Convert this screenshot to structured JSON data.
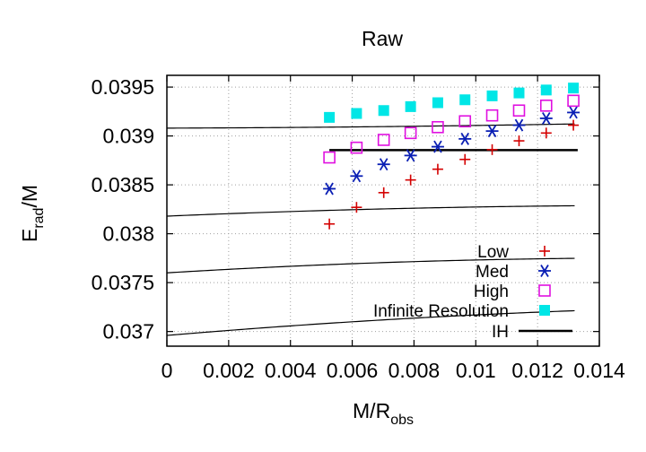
{
  "chart_data": {
    "type": "scatter",
    "title": "Raw",
    "xlabel": {
      "main": "M/R",
      "sub": "obs"
    },
    "ylabel": {
      "main": "E",
      "sub": "rad",
      "tail": "/M"
    },
    "xlim": [
      0,
      0.014
    ],
    "ylim": [
      0.03685,
      0.03962
    ],
    "xticks": [
      0,
      0.002,
      0.004,
      0.006,
      0.008,
      0.01,
      0.012,
      0.014
    ],
    "xtick_labels": [
      "0",
      "0.002",
      "0.004",
      "0.006",
      "0.008",
      "0.01",
      "0.012",
      "0.014"
    ],
    "yticks": [
      0.037,
      0.0375,
      0.038,
      0.0385,
      0.039,
      0.0395
    ],
    "ytick_labels": [
      "0.037",
      "0.0375",
      "0.038",
      "0.0385",
      "0.039",
      "0.0395"
    ],
    "grid": true,
    "legend_position": "bottom-right",
    "series": [
      {
        "name": "Low",
        "marker": "plus",
        "color": "#d40000",
        "x": [
          0.00526,
          0.00614,
          0.00702,
          0.00789,
          0.00877,
          0.00965,
          0.01053,
          0.0114,
          0.01228,
          0.01316
        ],
        "y": [
          0.0381,
          0.03827,
          0.03842,
          0.03855,
          0.03866,
          0.03876,
          0.03886,
          0.03895,
          0.03903,
          0.03911
        ],
        "fit": {
          "a": 0.03696,
          "b": 0.02663,
          "c": -0.5675
        }
      },
      {
        "name": "Med",
        "marker": "star",
        "color": "#0a1fb4",
        "x": [
          0.00526,
          0.00614,
          0.00702,
          0.00789,
          0.00877,
          0.00965,
          0.01053,
          0.0114,
          0.01228,
          0.01316
        ],
        "y": [
          0.03846,
          0.03859,
          0.03871,
          0.0388,
          0.03889,
          0.03897,
          0.03905,
          0.03911,
          0.03918,
          0.03924
        ],
        "fit": {
          "a": 0.0376,
          "b": 0.01915,
          "c": -0.6007
        }
      },
      {
        "name": "High",
        "marker": "open-square",
        "color": "#e010e0",
        "x": [
          0.00526,
          0.00614,
          0.00702,
          0.00789,
          0.00877,
          0.00965,
          0.01053,
          0.0114,
          0.01228,
          0.01316
        ],
        "y": [
          0.03878,
          0.03888,
          0.03896,
          0.03903,
          0.03909,
          0.03915,
          0.03921,
          0.03926,
          0.03931,
          0.03936
        ],
        "fit": {
          "a": 0.03818,
          "b": 0.01335,
          "c": -0.4024
        }
      },
      {
        "name": "Infinite Resolution",
        "marker": "filled-square",
        "color": "#00e6e6",
        "x": [
          0.00526,
          0.00614,
          0.00702,
          0.00789,
          0.00877,
          0.00965,
          0.01053,
          0.0114,
          0.01228,
          0.01316
        ],
        "y": [
          0.03919,
          0.03923,
          0.03926,
          0.0393,
          0.03934,
          0.03937,
          0.03941,
          0.03944,
          0.03947,
          0.03949
        ],
        "fit": {
          "a": 0.03908,
          "b": 0.00103,
          "c": 0.1686
        }
      }
    ],
    "ih": {
      "name": "IH",
      "y": 0.038855,
      "x": [
        0.00526,
        0.0133
      ],
      "color": "#000000"
    }
  }
}
